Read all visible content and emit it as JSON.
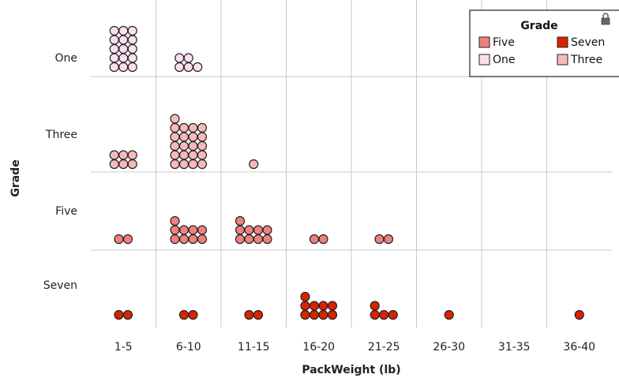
{
  "chart_data": {
    "type": "dot-plot",
    "xlabel": "PackWeight (lb)",
    "ylabel": "Grade",
    "categories": [
      "1-5",
      "6-10",
      "11-15",
      "16-20",
      "21-25",
      "26-30",
      "31-35",
      "36-40"
    ],
    "rows": [
      "One",
      "Three",
      "Five",
      "Seven"
    ],
    "legend": {
      "title": "Grade",
      "placement": "top-right",
      "entries": [
        {
          "label": "Five",
          "color": "#f08080"
        },
        {
          "label": "Seven",
          "color": "#dd2200"
        },
        {
          "label": "One",
          "color": "#fbe0f0"
        },
        {
          "label": "Three",
          "color": "#f8b8bc"
        }
      ]
    },
    "grid": true,
    "series": [
      {
        "name": "One",
        "color": "#fbe0f0",
        "values": [
          15,
          5,
          0,
          0,
          0,
          0,
          0,
          0
        ]
      },
      {
        "name": "Three",
        "color": "#f8b8bc",
        "values": [
          6,
          21,
          1,
          0,
          0,
          0,
          0,
          0
        ]
      },
      {
        "name": "Five",
        "color": "#f08080",
        "values": [
          2,
          9,
          9,
          2,
          2,
          0,
          0,
          0
        ]
      },
      {
        "name": "Seven",
        "color": "#dd2200",
        "values": [
          2,
          2,
          2,
          9,
          4,
          1,
          0,
          1
        ]
      }
    ]
  }
}
